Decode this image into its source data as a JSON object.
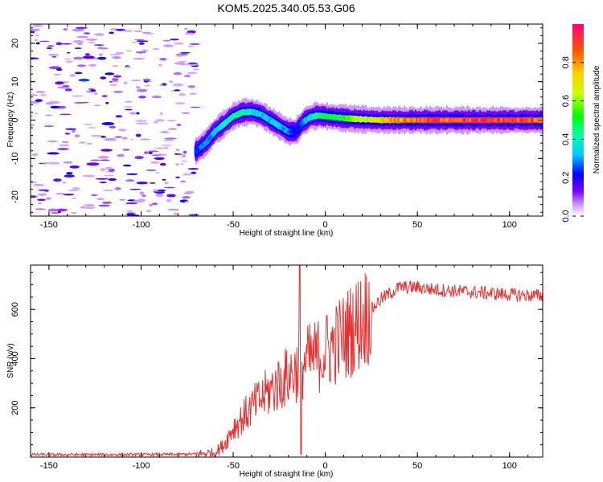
{
  "title": "KOM5.2025.340.05.53.G06",
  "chart_data": [
    {
      "type": "heatmap",
      "name": "spectrogram",
      "xlabel": "Height of straight line (km)",
      "ylabel": "Frequency (Hz)",
      "xlim": [
        -160,
        118
      ],
      "ylim": [
        -25,
        25
      ],
      "xticks": [
        -150,
        -100,
        -50,
        0,
        50,
        100
      ],
      "yticks": [
        -20,
        -10,
        0,
        10,
        20
      ],
      "signal_track": {
        "x": [
          -70,
          -65,
          -60,
          -55,
          -50,
          -45,
          -40,
          -35,
          -30,
          -25,
          -20,
          -16,
          -12,
          -8,
          -4,
          0,
          10,
          20,
          30,
          40,
          60,
          80,
          100,
          118
        ],
        "freq": [
          -8,
          -6,
          -3,
          -1,
          1,
          2,
          2.2,
          1.5,
          0,
          -1.5,
          -3,
          -3,
          -0.5,
          0.8,
          1.2,
          1,
          0.5,
          0.2,
          0,
          0,
          0,
          0,
          0,
          0
        ],
        "amplitude": [
          0.25,
          0.3,
          0.35,
          0.4,
          0.45,
          0.45,
          0.4,
          0.35,
          0.35,
          0.35,
          0.3,
          0.2,
          0.3,
          0.4,
          0.45,
          0.5,
          0.55,
          0.65,
          0.75,
          0.85,
          0.95,
          0.95,
          0.95,
          0.9
        ]
      },
      "noise_region_x": [
        -160,
        -70
      ]
    },
    {
      "type": "colorbar",
      "label": "Normalized spectral amplitude",
      "range": [
        0,
        1
      ],
      "ticks": [
        "0.0",
        "0.2",
        "0.4",
        "0.6",
        "0.8"
      ],
      "tick_values": [
        0,
        0.2,
        0.4,
        0.6,
        0.8
      ]
    },
    {
      "type": "line",
      "name": "snr",
      "xlabel": "Height of straight line (km)",
      "ylabel": "SNR (v/v)",
      "xlim": [
        -160,
        118
      ],
      "ylim": [
        0,
        780
      ],
      "xticks": [
        -150,
        -100,
        -50,
        0,
        50,
        100
      ],
      "yticks": [
        200,
        400,
        600
      ],
      "color": "#e83030",
      "trend": {
        "x": [
          -160,
          -100,
          -70,
          -60,
          -55,
          -50,
          -45,
          -40,
          -30,
          -20,
          -10,
          0,
          10,
          20,
          30,
          40,
          50,
          60,
          80,
          100,
          118
        ],
        "y": [
          10,
          10,
          12,
          18,
          50,
          120,
          160,
          200,
          270,
          330,
          390,
          430,
          490,
          560,
          640,
          690,
          690,
          680,
          670,
          660,
          655
        ]
      },
      "spike": {
        "x": -14,
        "y": 780,
        "min": 10
      }
    }
  ]
}
